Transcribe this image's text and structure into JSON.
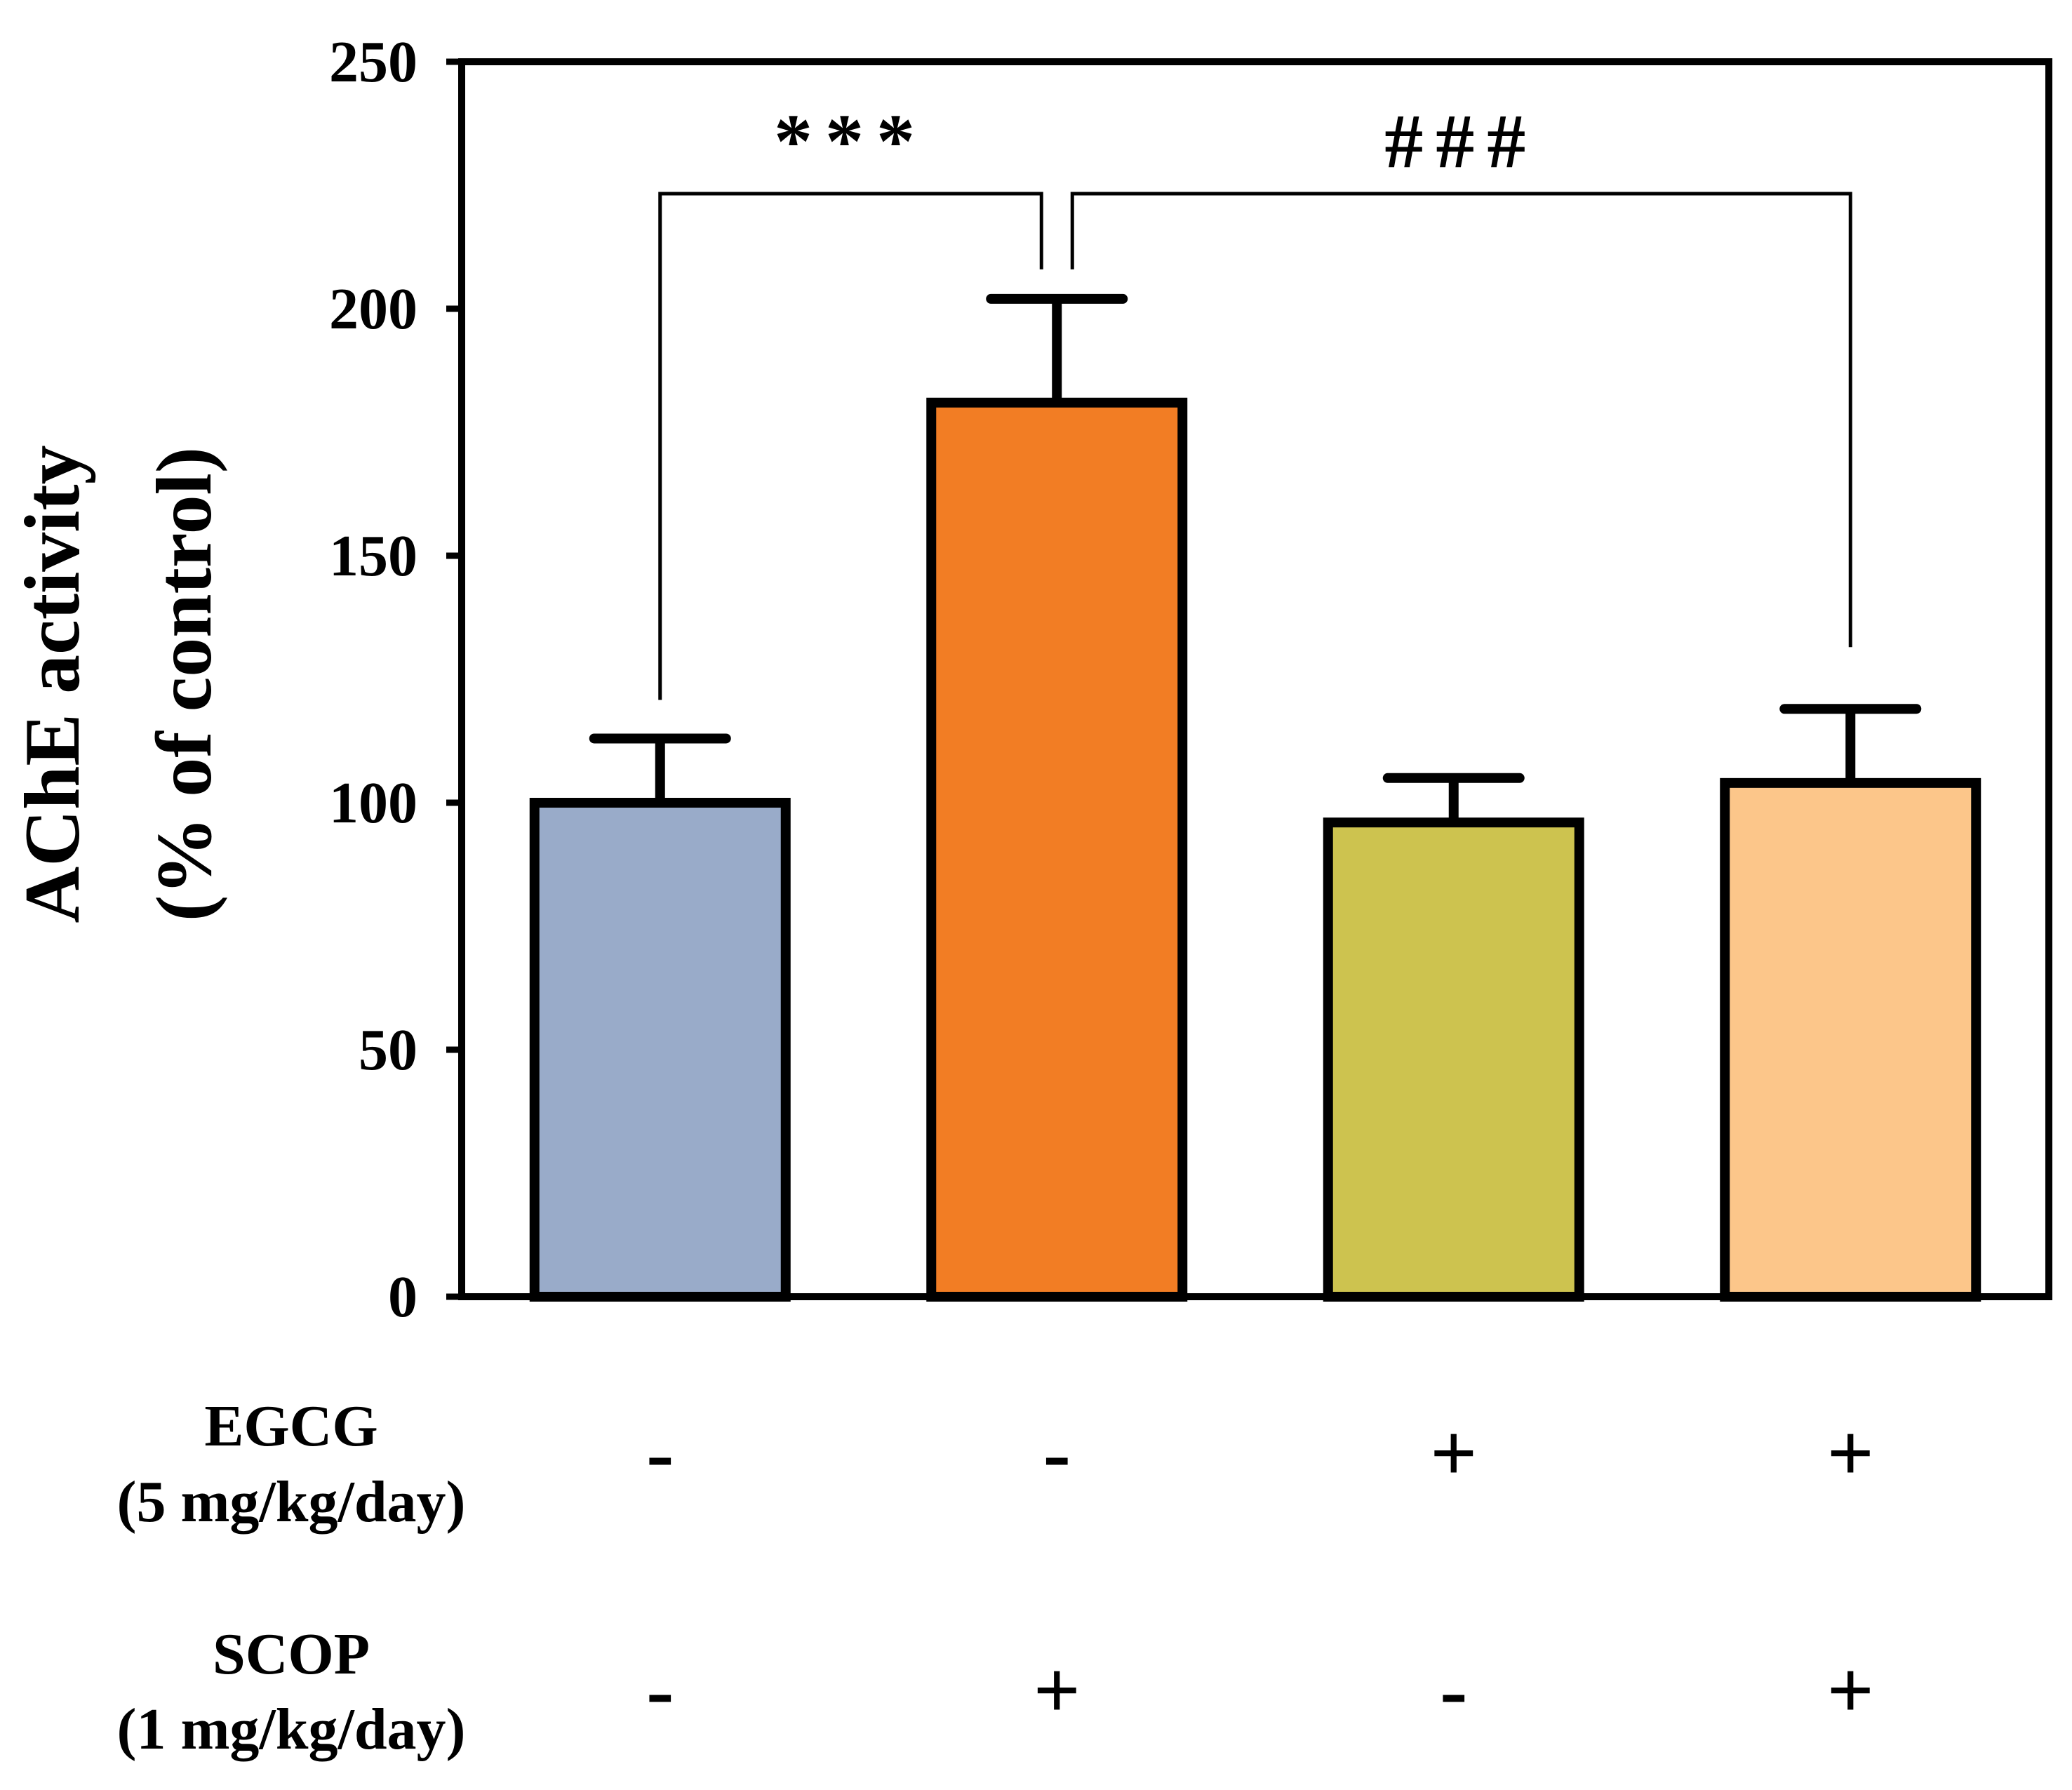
{
  "chart_data": {
    "type": "bar",
    "ylabel_line1": "AChE activity",
    "ylabel_line2": "(% of control)",
    "ylim": [
      0,
      250
    ],
    "yticks": [
      "0",
      "50",
      "100",
      "150",
      "200",
      "250"
    ],
    "bars": [
      {
        "value": 100,
        "error": 13,
        "color": "#99abc9",
        "egcg": "-",
        "scop": "-"
      },
      {
        "value": 181,
        "error": 21,
        "color": "#f27d24",
        "egcg": "-",
        "scop": "+"
      },
      {
        "value": 96,
        "error": 9,
        "color": "#cdc34f",
        "egcg": "+",
        "scop": "-"
      },
      {
        "value": 104,
        "error": 15,
        "color": "#fcc68a",
        "egcg": "+",
        "scop": "+"
      }
    ],
    "significance": [
      {
        "label": "***",
        "from": 0,
        "to": 1
      },
      {
        "label": "###",
        "from": 1,
        "to": 3
      }
    ],
    "row_labels": {
      "egcg_line1": "EGCG",
      "egcg_line2": "(5 mg/kg/day)",
      "scop_line1": "SCOP",
      "scop_line2": "(1 mg/kg/day)"
    }
  }
}
